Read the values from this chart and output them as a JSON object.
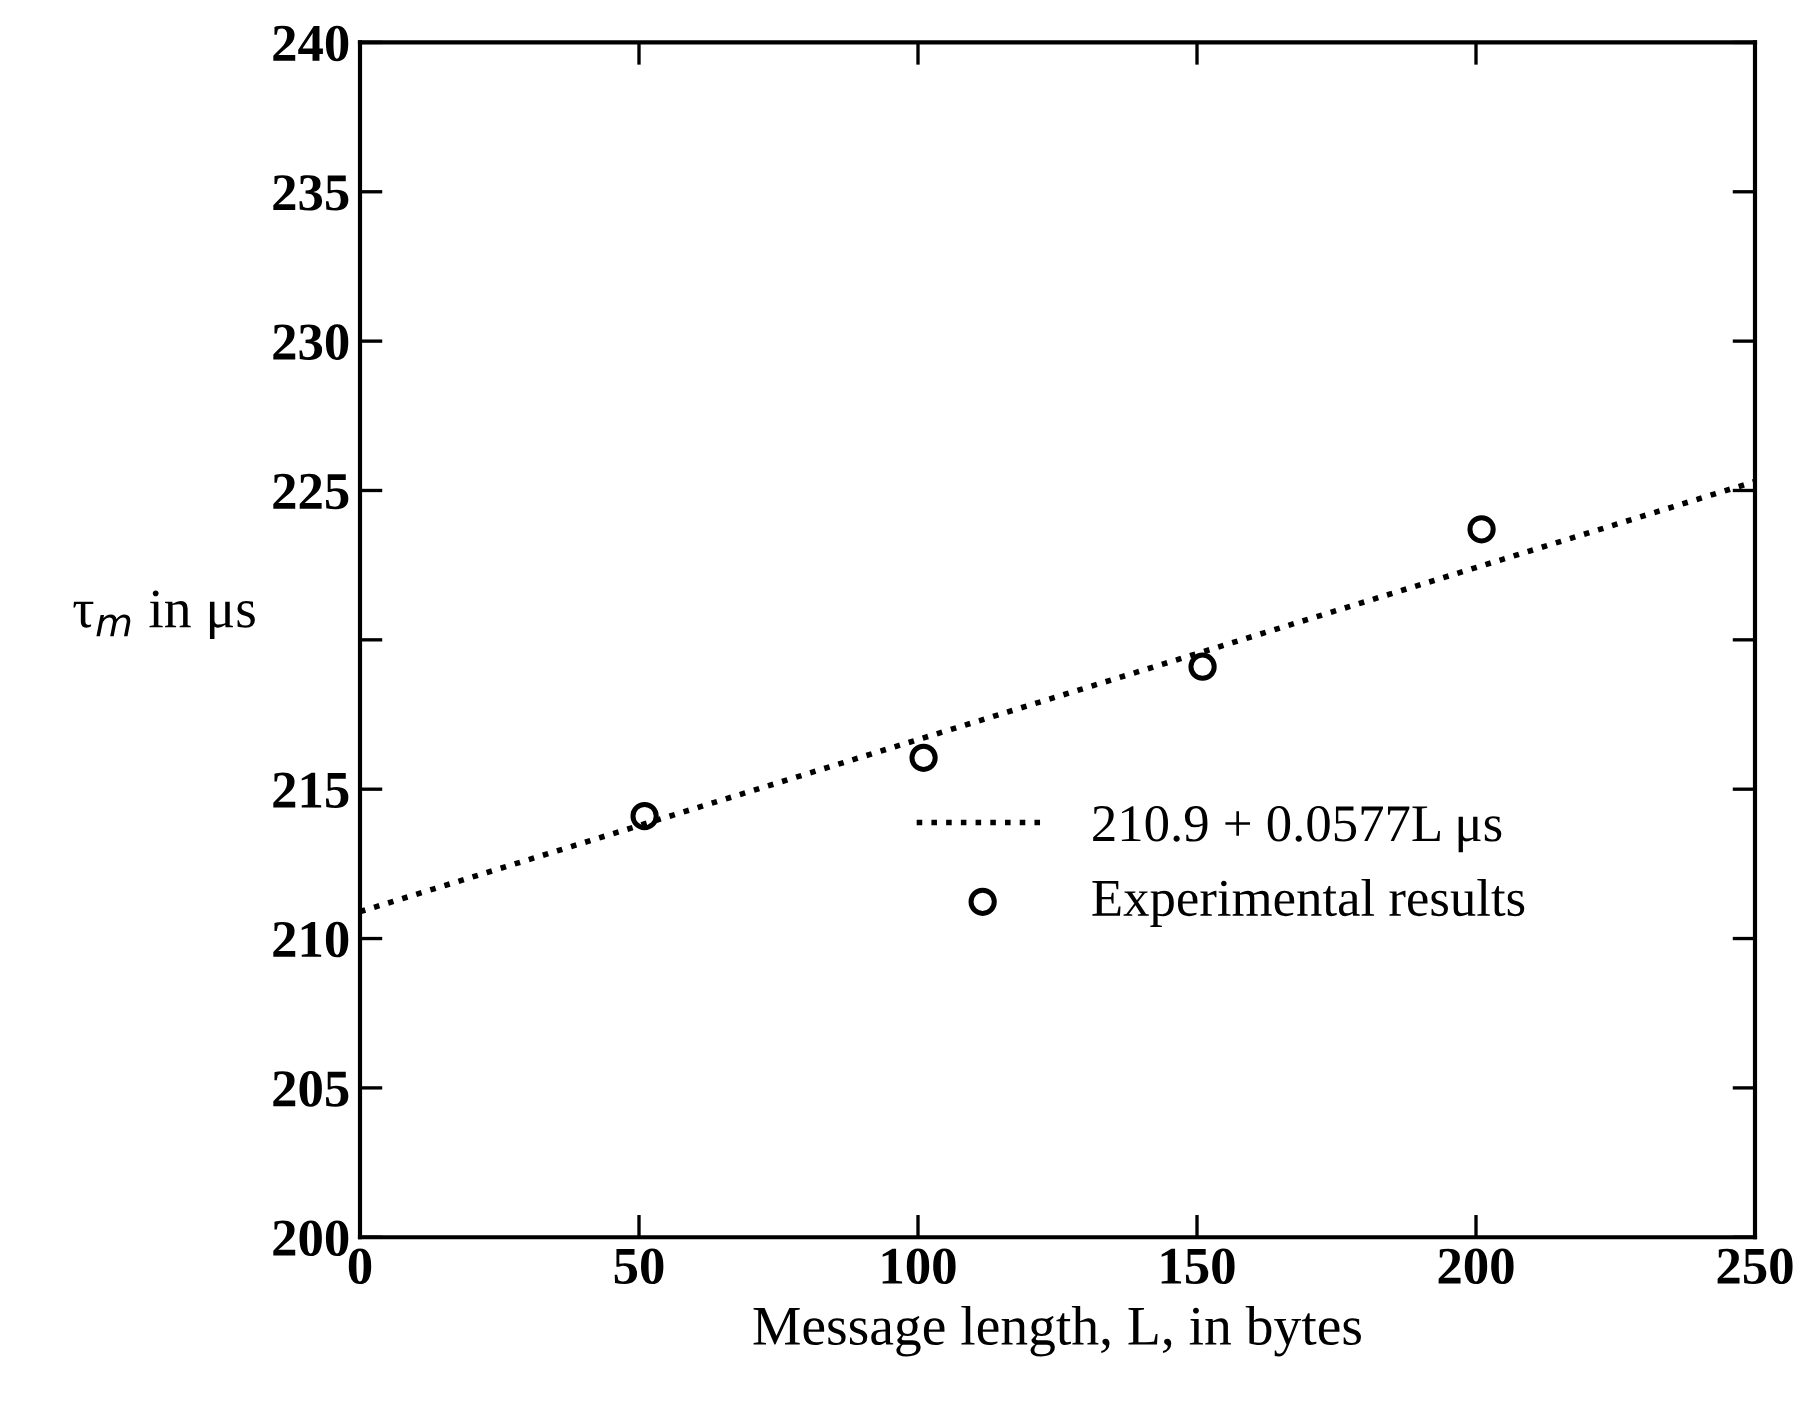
{
  "chart_data": {
    "type": "scatter",
    "xlabel": "Message length, L, in bytes",
    "ylabel": "τ$_{m}$ in μs",
    "series": [
      {
        "name": "210.9 + 0.0577L μs",
        "type": "line",
        "x": [
          0,
          250
        ],
        "values": [
          210.9,
          225.3
        ],
        "color": "#000000",
        "line_style": "dotted",
        "marker": "none"
      },
      {
        "name": "Experimental results",
        "type": "scatter",
        "x": [
          51,
          101,
          151,
          201
        ],
        "values": [
          214.1,
          216.05,
          219.1,
          223.7
        ],
        "color": "#000000",
        "marker": "circle"
      }
    ],
    "xlim": [
      0,
      250
    ],
    "ylim": [
      200,
      240
    ],
    "xticks": [
      0,
      50,
      100,
      150,
      200,
      250
    ],
    "yticks": [
      200,
      205,
      210,
      215,
      {
        "value": 220,
        "label": null
      },
      225,
      230,
      235,
      240
    ],
    "grid": false,
    "legend": "lower right"
  }
}
